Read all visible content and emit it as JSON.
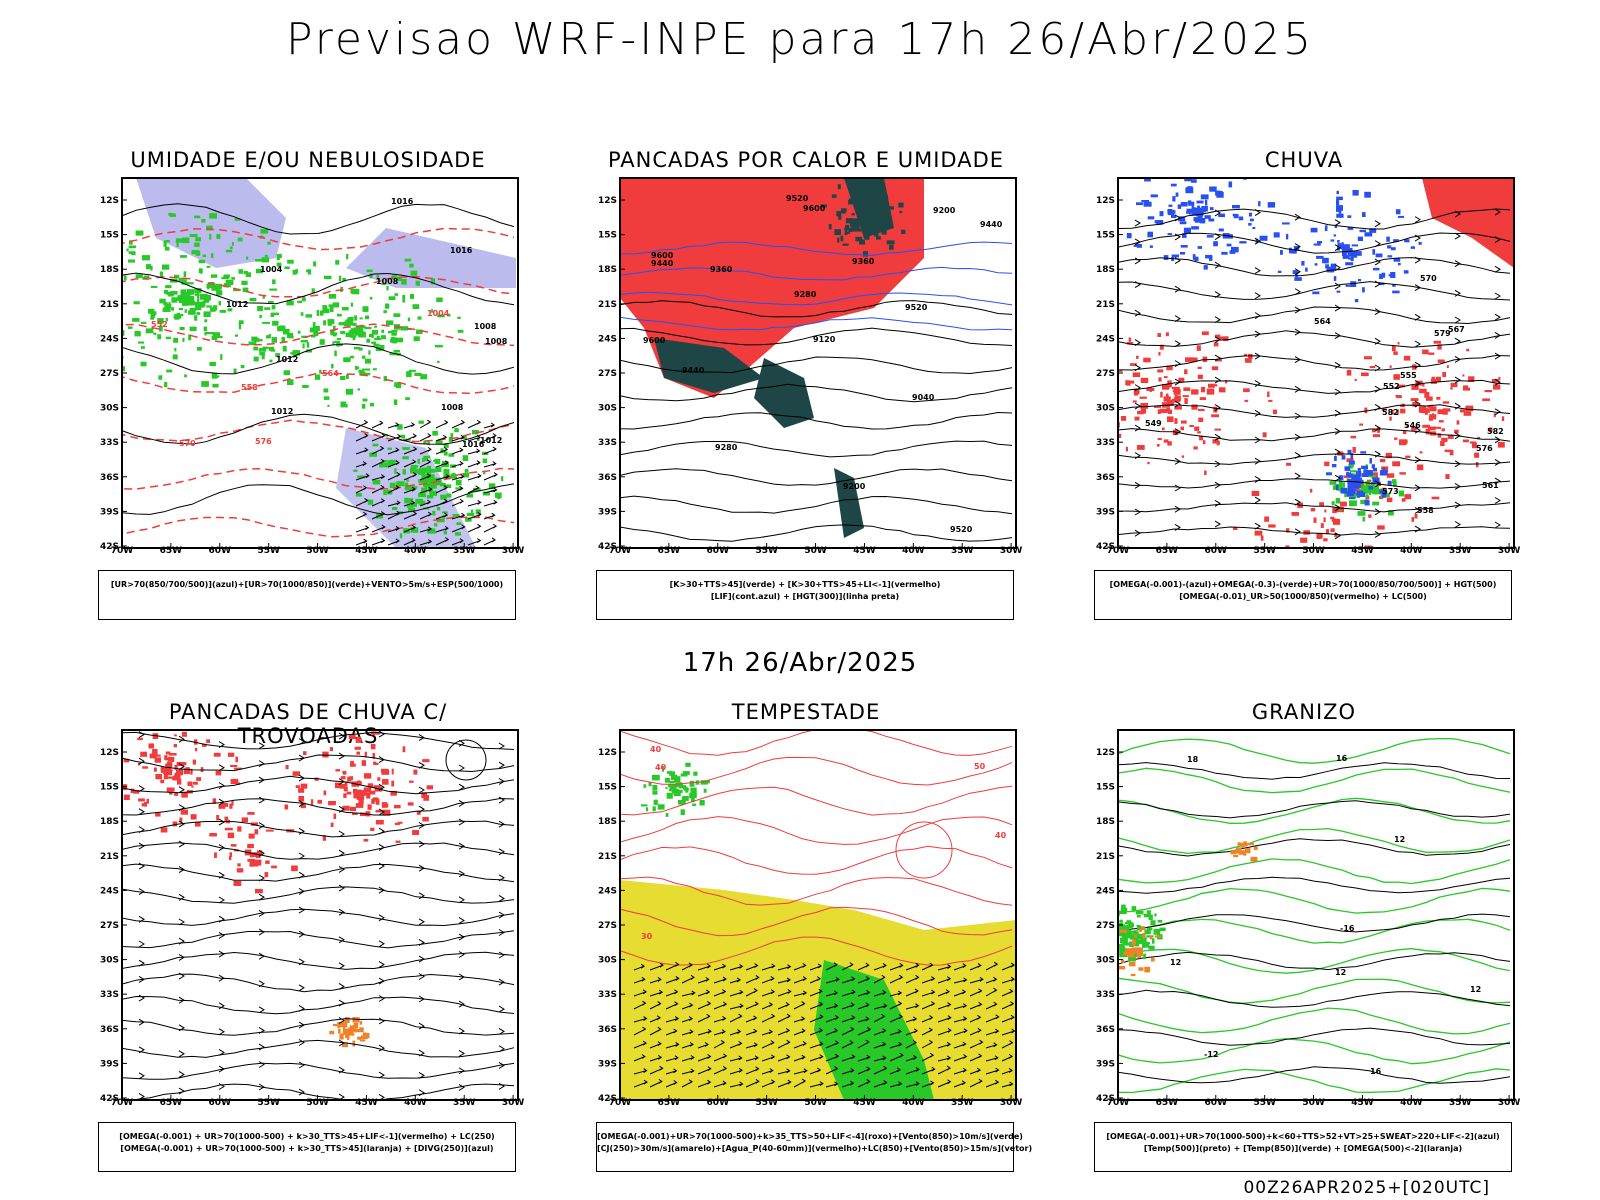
{
  "header": {
    "title": "Previsao WRF-INPE  para 17h 26/Abr/2025"
  },
  "mid_timestamp": "17h 26/Abr/2025",
  "footer": "00Z26APR2025+[020UTC]",
  "axes": {
    "latitudes": [
      "12S",
      "15S",
      "18S",
      "21S",
      "24S",
      "27S",
      "30S",
      "33S",
      "36S",
      "39S",
      "42S"
    ],
    "longitudes": [
      "70W",
      "65W",
      "60W",
      "55W",
      "50W",
      "45W",
      "40W",
      "35W",
      "30W"
    ]
  },
  "panels": [
    {
      "id": "umidade",
      "title": "UMIDADE E/OU NEBULOSIDADE",
      "legend": [
        "[UR>70(850/700/500)](azul)+[UR>70(1000/850)](verde)+VENTO>5m/s+ESP(500/1000)"
      ],
      "labels": [
        "1004",
        "1008",
        "1008",
        "1008",
        "1012",
        "1012",
        "1012",
        "1016",
        "1016",
        "1016",
        "1012",
        "1008",
        "1004",
        "576",
        "570",
        "564",
        "558",
        "552"
      ]
    },
    {
      "id": "pancadas_calor",
      "title": "PANCADAS POR CALOR E UMIDADE",
      "legend": [
        "[K>30+TTS>45](verde) + [K>30+TTS>45+LI<-1](vermelho)",
        "[LIF](cont.azul) + [HGT(300)](linha preta)"
      ],
      "labels": [
        "9600",
        "9600",
        "9520",
        "9440",
        "9600",
        "9520",
        "9440",
        "9360",
        "9280",
        "9200",
        "9120",
        "9040",
        "9520",
        "9440",
        "9360",
        "9280",
        "9200"
      ]
    },
    {
      "id": "chuva",
      "title": "CHUVA",
      "legend": [
        "[OMEGA(-0.001)-(azul)+OMEGA(-0.3)-(verde)+UR>70(1000/850/700/500)] + HGT(500)",
        "[OMEGA(-0.01)_UR>50(1000/850)(vermelho) + LC(500)"
      ],
      "labels": [
        "582",
        "582",
        "579",
        "576",
        "573",
        "570",
        "567",
        "564",
        "561",
        "558",
        "555",
        "552",
        "549",
        "546"
      ]
    },
    {
      "id": "trovoadas",
      "title": "PANCADAS DE CHUVA C/ TROVOADAS",
      "legend": [
        "[OMEGA(-0.001) + UR>70(1000-500) + k>30_TTS>45+LIF<-1](vermelho) + LC(250)",
        "[OMEGA(-0.001) + UR>70(1000-500) + k>30_TTS>45](laranja) + [DIVG(250)](azul)"
      ],
      "labels": []
    },
    {
      "id": "tempestade",
      "title": "TEMPESTADE",
      "legend": [
        "[OMEGA(-0.001)+UR>70(1000-500)+k>35_TTS>50+LIF<-4](roxo)+[Vento(850)>10m/s](verde)",
        "[CJ(250)>30m/s](amarelo)+[Agua_P(40-60mm)](vermelho)+LC(850)+[Vento(850)>15m/s](vetor)"
      ],
      "labels": [
        "40",
        "40",
        "30",
        "50",
        "40"
      ]
    },
    {
      "id": "granizo",
      "title": "GRANIZO",
      "legend": [
        "[OMEGA(-0.001)+UR>70(1000-500)+k<60+TTS>52+VT>25+SWEAT>220+LIF<-2](azul)",
        "[Temp(500)](preto) + [Temp(850)](verde) + [OMEGA(500)<-2](laranja)"
      ],
      "labels": [
        "12",
        "12",
        "12",
        "12",
        "16",
        "16",
        "18",
        "-12",
        "-16"
      ]
    }
  ],
  "colors": {
    "frame": "#000000",
    "blue_fill": "#b4b4ec",
    "green": "#28c828",
    "red": "#f03c3c",
    "dark_teal": "#1e4646",
    "yellow": "#e6dc32",
    "orange": "#f08228",
    "blue": "#2850f0"
  }
}
